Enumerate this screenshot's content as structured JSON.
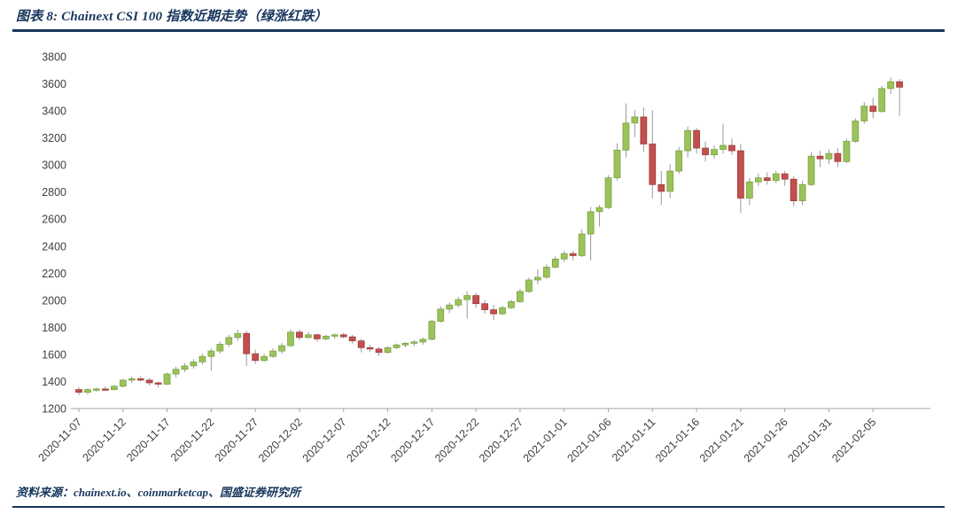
{
  "header": {
    "title": "图表 8: Chainext CSI 100 指数近期走势（绿涨红跌）"
  },
  "footer": {
    "text": "资料来源：chainext.io、coinmarketcap、国盛证券研究所"
  },
  "chart_data": {
    "type": "candlestick",
    "title": "Chainext CSI 100 指数近期走势",
    "legend_note": "绿涨红跌",
    "ylim": [
      1200,
      3800
    ],
    "ytick_step": 200,
    "grid": false,
    "x_tick_every": 5,
    "x_tick_labels": [
      "2020-11-07",
      "2020-11-12",
      "2020-11-17",
      "2020-11-22",
      "2020-11-27",
      "2020-12-02",
      "2020-12-07",
      "2020-12-12",
      "2020-12-17",
      "2020-12-22",
      "2020-12-27",
      "2021-01-01",
      "2021-01-06",
      "2021-01-11",
      "2021-01-16",
      "2021-01-21",
      "2021-01-26",
      "2021-01-31",
      "2021-02-05"
    ],
    "colors": {
      "up": "#9bc25b",
      "up_border": "#79a23e",
      "down": "#c1504e",
      "down_border": "#9e3b39",
      "wick": "#999999",
      "axis": "#a6a6a6",
      "label": "#404040",
      "accent": "#17365d"
    },
    "ohlc": [
      [
        1340,
        1360,
        1300,
        1320
      ],
      [
        1320,
        1350,
        1305,
        1340
      ],
      [
        1340,
        1355,
        1325,
        1345
      ],
      [
        1345,
        1365,
        1330,
        1340
      ],
      [
        1340,
        1375,
        1335,
        1365
      ],
      [
        1365,
        1420,
        1355,
        1410
      ],
      [
        1410,
        1435,
        1390,
        1420
      ],
      [
        1420,
        1440,
        1400,
        1410
      ],
      [
        1410,
        1425,
        1370,
        1390
      ],
      [
        1390,
        1400,
        1355,
        1380
      ],
      [
        1380,
        1465,
        1375,
        1455
      ],
      [
        1455,
        1510,
        1430,
        1490
      ],
      [
        1490,
        1535,
        1470,
        1515
      ],
      [
        1515,
        1565,
        1495,
        1545
      ],
      [
        1545,
        1605,
        1525,
        1585
      ],
      [
        1585,
        1645,
        1480,
        1625
      ],
      [
        1625,
        1695,
        1605,
        1675
      ],
      [
        1675,
        1745,
        1655,
        1725
      ],
      [
        1725,
        1785,
        1700,
        1755
      ],
      [
        1755,
        1775,
        1515,
        1605
      ],
      [
        1605,
        1635,
        1530,
        1555
      ],
      [
        1555,
        1605,
        1545,
        1585
      ],
      [
        1585,
        1645,
        1575,
        1625
      ],
      [
        1625,
        1685,
        1605,
        1665
      ],
      [
        1665,
        1785,
        1655,
        1765
      ],
      [
        1765,
        1785,
        1705,
        1725
      ],
      [
        1725,
        1765,
        1715,
        1745
      ],
      [
        1745,
        1755,
        1695,
        1715
      ],
      [
        1715,
        1745,
        1705,
        1735
      ],
      [
        1735,
        1755,
        1715,
        1745
      ],
      [
        1745,
        1760,
        1720,
        1730
      ],
      [
        1730,
        1745,
        1680,
        1700
      ],
      [
        1700,
        1715,
        1615,
        1650
      ],
      [
        1650,
        1670,
        1620,
        1640
      ],
      [
        1640,
        1655,
        1590,
        1615
      ],
      [
        1615,
        1660,
        1605,
        1650
      ],
      [
        1650,
        1680,
        1640,
        1670
      ],
      [
        1670,
        1692,
        1652,
        1682
      ],
      [
        1682,
        1705,
        1662,
        1692
      ],
      [
        1692,
        1725,
        1672,
        1712
      ],
      [
        1712,
        1855,
        1702,
        1845
      ],
      [
        1845,
        1955,
        1835,
        1935
      ],
      [
        1935,
        1985,
        1905,
        1965
      ],
      [
        1965,
        2025,
        1945,
        2005
      ],
      [
        2005,
        2065,
        1865,
        2035
      ],
      [
        2035,
        2055,
        1945,
        1975
      ],
      [
        1975,
        2000,
        1900,
        1930
      ],
      [
        1930,
        1965,
        1855,
        1900
      ],
      [
        1900,
        1960,
        1890,
        1945
      ],
      [
        1945,
        2005,
        1935,
        1990
      ],
      [
        1990,
        2085,
        1980,
        2065
      ],
      [
        2065,
        2165,
        2055,
        2150
      ],
      [
        2150,
        2230,
        2120,
        2170
      ],
      [
        2170,
        2265,
        2160,
        2245
      ],
      [
        2245,
        2325,
        2235,
        2305
      ],
      [
        2305,
        2365,
        2285,
        2345
      ],
      [
        2345,
        2365,
        2295,
        2330
      ],
      [
        2330,
        2525,
        2320,
        2490
      ],
      [
        2490,
        2690,
        2295,
        2655
      ],
      [
        2655,
        2705,
        2545,
        2685
      ],
      [
        2685,
        2925,
        2675,
        2905
      ],
      [
        2905,
        3160,
        2885,
        3110
      ],
      [
        3110,
        3455,
        3055,
        3310
      ],
      [
        3310,
        3405,
        3205,
        3355
      ],
      [
        3355,
        3425,
        3095,
        3155
      ],
      [
        3155,
        3405,
        2755,
        2855
      ],
      [
        2855,
        2955,
        2705,
        2805
      ],
      [
        2805,
        3005,
        2755,
        2955
      ],
      [
        2955,
        3135,
        2935,
        3105
      ],
      [
        3105,
        3285,
        3055,
        3255
      ],
      [
        3255,
        3275,
        3085,
        3125
      ],
      [
        3125,
        3175,
        3025,
        3075
      ],
      [
        3075,
        3145,
        3045,
        3115
      ],
      [
        3115,
        3305,
        3085,
        3145
      ],
      [
        3145,
        3195,
        3075,
        3105
      ],
      [
        3105,
        3155,
        2645,
        2755
      ],
      [
        2755,
        2905,
        2705,
        2875
      ],
      [
        2875,
        2935,
        2845,
        2905
      ],
      [
        2905,
        2945,
        2855,
        2885
      ],
      [
        2885,
        2955,
        2865,
        2935
      ],
      [
        2935,
        2955,
        2845,
        2895
      ],
      [
        2895,
        2915,
        2695,
        2735
      ],
      [
        2735,
        2885,
        2705,
        2855
      ],
      [
        2855,
        3095,
        2845,
        3065
      ],
      [
        3065,
        3105,
        2985,
        3045
      ],
      [
        3045,
        3115,
        3005,
        3085
      ],
      [
        3085,
        3125,
        2985,
        3025
      ],
      [
        3025,
        3195,
        3015,
        3175
      ],
      [
        3175,
        3345,
        3165,
        3325
      ],
      [
        3325,
        3465,
        3305,
        3435
      ],
      [
        3435,
        3495,
        3345,
        3395
      ],
      [
        3395,
        3585,
        3385,
        3565
      ],
      [
        3565,
        3645,
        3525,
        3615
      ],
      [
        3615,
        3635,
        3365,
        3575
      ]
    ]
  }
}
